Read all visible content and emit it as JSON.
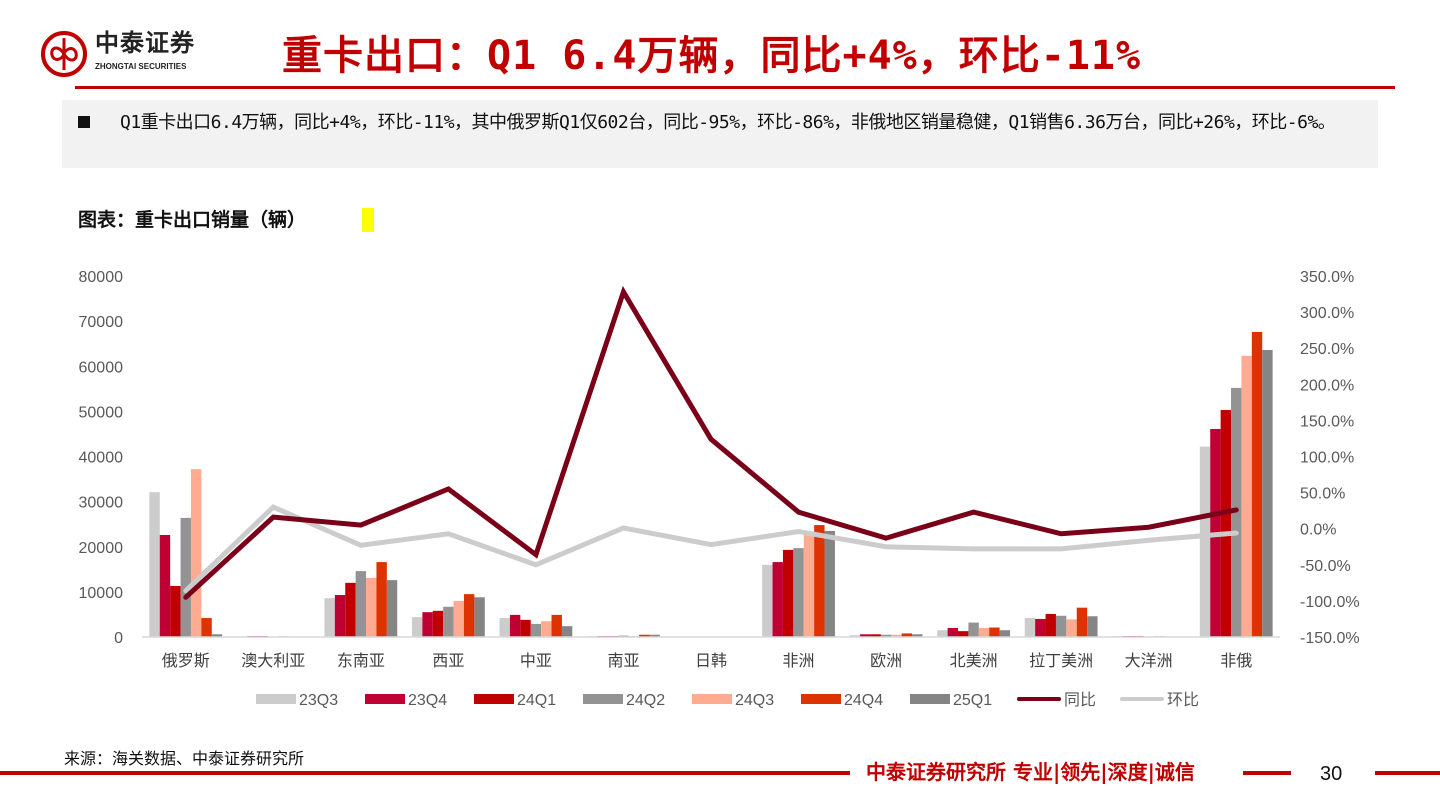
{
  "header": {
    "logo_cn": "中泰证券",
    "logo_en": "ZHONGTAI SECURITIES",
    "title": "重卡出口：Q1 6.4万辆，同比+4%，环比-11%"
  },
  "summary": {
    "text": "Q1重卡出口6.4万辆，同比+4%，环比-11%，其中俄罗斯Q1仅602台，同比-95%，环比-86%，非俄地区销量稳健，Q1销售6.36万台，同比+26%，环比-6%。"
  },
  "chart_title": "图表：重卡出口销量（辆）",
  "chart_data": {
    "type": "bar+line",
    "categories": [
      "俄罗斯",
      "澳大利亚",
      "东南亚",
      "西亚",
      "中亚",
      "南亚",
      "日韩",
      "非洲",
      "欧洲",
      "北美洲",
      "拉丁美洲",
      "大洋洲",
      "非俄"
    ],
    "y_left": {
      "range": [
        0,
        80000
      ],
      "ticks": [
        "0",
        "10000",
        "20000",
        "30000",
        "40000",
        "50000",
        "60000",
        "70000",
        "80000"
      ]
    },
    "y_right": {
      "range": [
        -150,
        350
      ],
      "ticks": [
        "-150.0%",
        "-100.0%",
        "-50.0%",
        "0.0%",
        "50.0%",
        "100.0%",
        "150.0%",
        "200.0%",
        "250.0%",
        "300.0%",
        "350.0%"
      ]
    },
    "grid": false,
    "legend_position": "bottom",
    "bar_series": [
      {
        "name": "23Q3",
        "color": "#cccccc",
        "values": [
          32100,
          100,
          8600,
          4400,
          4200,
          200,
          100,
          16000,
          400,
          1500,
          4200,
          200,
          42200
        ]
      },
      {
        "name": "23Q4",
        "color": "#be0032",
        "values": [
          22600,
          200,
          9300,
          5500,
          4900,
          200,
          100,
          16600,
          600,
          2000,
          4000,
          200,
          46100
        ]
      },
      {
        "name": "24Q1",
        "color": "#c00000",
        "values": [
          11300,
          200,
          12000,
          5800,
          3800,
          200,
          100,
          19300,
          600,
          1300,
          5100,
          200,
          50300
        ]
      },
      {
        "name": "24Q2",
        "color": "#939393",
        "values": [
          26400,
          100,
          14600,
          6700,
          2900,
          300,
          100,
          19700,
          500,
          3200,
          4700,
          100,
          55200
        ]
      },
      {
        "name": "24Q3",
        "color": "#ffab91",
        "values": [
          37200,
          200,
          13100,
          8000,
          3500,
          200,
          100,
          23000,
          500,
          2000,
          3900,
          200,
          62300
        ]
      },
      {
        "name": "24Q4",
        "color": "#dd3300",
        "values": [
          4200,
          100,
          16600,
          9500,
          4900,
          500,
          100,
          24800,
          800,
          2100,
          6500,
          100,
          67600
        ]
      },
      {
        "name": "25Q1",
        "color": "#858585",
        "values": [
          602,
          100,
          12600,
          8800,
          2400,
          500,
          100,
          23500,
          600,
          1500,
          4600,
          100,
          63600
        ]
      }
    ],
    "line_series": [
      {
        "name": "同比",
        "color": "#7a0019",
        "axis": "right",
        "values": [
          -95,
          16,
          5,
          55,
          -36,
          328,
          124,
          23,
          -13,
          23,
          -7,
          2,
          26
        ]
      },
      {
        "name": "环比",
        "color": "#cccccc",
        "axis": "right",
        "values": [
          -86,
          30,
          -23,
          -7,
          -50,
          1,
          -22,
          -4,
          -25,
          -28,
          -28,
          -16,
          -6
        ]
      }
    ]
  },
  "source": "来源：海关数据、中泰证券研究所",
  "footer": {
    "slogan": "中泰证券研究所 专业|领先|深度|诚信",
    "page_number": "30"
  }
}
